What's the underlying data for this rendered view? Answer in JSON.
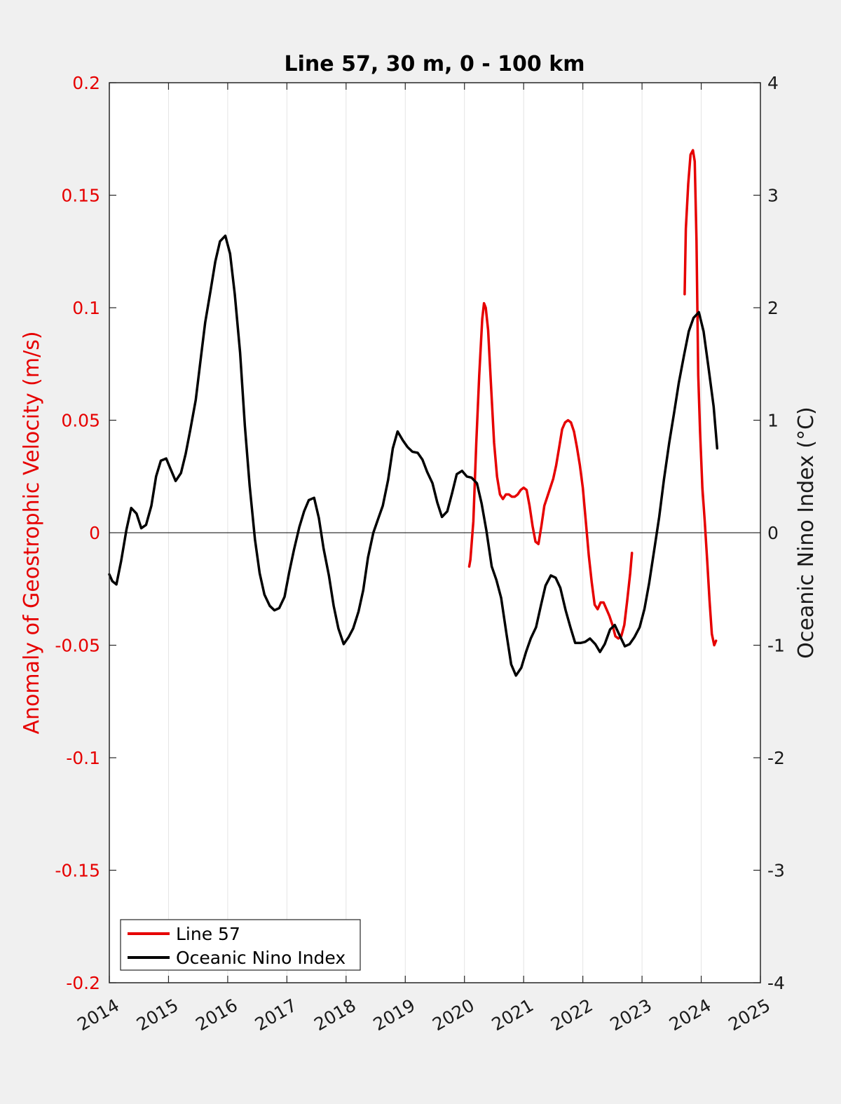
{
  "chart_data": {
    "type": "line",
    "title": "Line 57, 30 m, 0 - 100 km",
    "xlabel": "",
    "ylabel_left": "Anomaly of Geostrophic Velocity (m/s)",
    "ylabel_right": "Oceanic Nino Index (°C)",
    "xlim": [
      2014,
      2025
    ],
    "ylim_left": [
      -0.2,
      0.2
    ],
    "ylim_right": [
      -4,
      4
    ],
    "x_ticks": [
      2014,
      2015,
      2016,
      2017,
      2018,
      2019,
      2020,
      2021,
      2022,
      2023,
      2024,
      2025
    ],
    "x_tick_labels": [
      "2014",
      "2015",
      "2016",
      "2017",
      "2018",
      "2019",
      "2020",
      "2021",
      "2022",
      "2023",
      "2024",
      "2025"
    ],
    "y_left_ticks": [
      -0.2,
      -0.15,
      -0.1,
      -0.05,
      0,
      0.05,
      0.1,
      0.15,
      0.2
    ],
    "y_left_tick_labels": [
      "-0.2",
      "-0.15",
      "-0.1",
      "-0.05",
      "0",
      "0.05",
      "0.1",
      "0.15",
      "0.2"
    ],
    "y_right_ticks": [
      -4,
      -3,
      -2,
      -1,
      0,
      1,
      2,
      3,
      4
    ],
    "y_right_tick_labels": [
      "-4",
      "-3",
      "-2",
      "-1",
      "0",
      "1",
      "2",
      "3",
      "4"
    ],
    "grid": "vertical",
    "zero_line": true,
    "legend_position": "bottom-left",
    "series": [
      {
        "name": "Line 57",
        "axis": "left",
        "color": "#e60000",
        "segments": [
          [
            [
              2020.08,
              -0.015
            ],
            [
              2020.1,
              -0.012
            ],
            [
              2020.15,
              0.005
            ],
            [
              2020.2,
              0.04
            ],
            [
              2020.25,
              0.07
            ],
            [
              2020.3,
              0.095
            ],
            [
              2020.33,
              0.102
            ],
            [
              2020.36,
              0.1
            ],
            [
              2020.4,
              0.09
            ],
            [
              2020.45,
              0.065
            ],
            [
              2020.5,
              0.04
            ],
            [
              2020.55,
              0.025
            ],
            [
              2020.6,
              0.017
            ],
            [
              2020.65,
              0.015
            ],
            [
              2020.7,
              0.017
            ],
            [
              2020.75,
              0.017
            ],
            [
              2020.8,
              0.016
            ],
            [
              2020.85,
              0.016
            ],
            [
              2020.9,
              0.017
            ],
            [
              2020.95,
              0.019
            ],
            [
              2021.0,
              0.02
            ],
            [
              2021.05,
              0.019
            ],
            [
              2021.1,
              0.012
            ],
            [
              2021.15,
              0.003
            ],
            [
              2021.2,
              -0.004
            ],
            [
              2021.25,
              -0.005
            ],
            [
              2021.3,
              0.003
            ],
            [
              2021.35,
              0.012
            ],
            [
              2021.4,
              0.016
            ],
            [
              2021.45,
              0.02
            ],
            [
              2021.5,
              0.024
            ],
            [
              2021.55,
              0.03
            ],
            [
              2021.6,
              0.038
            ],
            [
              2021.65,
              0.046
            ],
            [
              2021.7,
              0.049
            ],
            [
              2021.75,
              0.05
            ],
            [
              2021.8,
              0.049
            ],
            [
              2021.85,
              0.045
            ],
            [
              2021.9,
              0.038
            ],
            [
              2021.95,
              0.03
            ],
            [
              2022.0,
              0.02
            ],
            [
              2022.05,
              0.005
            ],
            [
              2022.1,
              -0.01
            ],
            [
              2022.15,
              -0.022
            ],
            [
              2022.2,
              -0.032
            ],
            [
              2022.25,
              -0.034
            ],
            [
              2022.3,
              -0.031
            ],
            [
              2022.35,
              -0.031
            ],
            [
              2022.4,
              -0.034
            ],
            [
              2022.45,
              -0.037
            ],
            [
              2022.5,
              -0.041
            ],
            [
              2022.55,
              -0.046
            ],
            [
              2022.6,
              -0.047
            ],
            [
              2022.65,
              -0.046
            ],
            [
              2022.7,
              -0.041
            ],
            [
              2022.75,
              -0.03
            ],
            [
              2022.8,
              -0.018
            ],
            [
              2022.83,
              -0.009
            ]
          ],
          [
            [
              2023.72,
              0.106
            ],
            [
              2023.74,
              0.135
            ],
            [
              2023.78,
              0.155
            ],
            [
              2023.82,
              0.168
            ],
            [
              2023.86,
              0.17
            ],
            [
              2023.89,
              0.165
            ],
            [
              2023.92,
              0.13
            ],
            [
              2023.95,
              0.07
            ],
            [
              2023.98,
              0.045
            ],
            [
              2024.02,
              0.02
            ],
            [
              2024.06,
              0.005
            ],
            [
              2024.1,
              -0.012
            ],
            [
              2024.14,
              -0.03
            ],
            [
              2024.18,
              -0.045
            ],
            [
              2024.22,
              -0.05
            ],
            [
              2024.25,
              -0.048
            ]
          ]
        ]
      },
      {
        "name": "Oceanic Nino Index",
        "axis": "right",
        "color": "#000000",
        "points": [
          [
            2014.0,
            -0.37
          ],
          [
            2014.05,
            -0.43
          ],
          [
            2014.12,
            -0.46
          ],
          [
            2014.2,
            -0.25
          ],
          [
            2014.29,
            0.03
          ],
          [
            2014.37,
            0.22
          ],
          [
            2014.46,
            0.17
          ],
          [
            2014.54,
            0.04
          ],
          [
            2014.62,
            0.07
          ],
          [
            2014.71,
            0.24
          ],
          [
            2014.79,
            0.5
          ],
          [
            2014.87,
            0.64
          ],
          [
            2014.96,
            0.66
          ],
          [
            2015.04,
            0.56
          ],
          [
            2015.12,
            0.46
          ],
          [
            2015.21,
            0.53
          ],
          [
            2015.29,
            0.7
          ],
          [
            2015.37,
            0.92
          ],
          [
            2015.46,
            1.18
          ],
          [
            2015.54,
            1.53
          ],
          [
            2015.62,
            1.87
          ],
          [
            2015.71,
            2.15
          ],
          [
            2015.79,
            2.41
          ],
          [
            2015.87,
            2.59
          ],
          [
            2015.96,
            2.64
          ],
          [
            2016.04,
            2.48
          ],
          [
            2016.12,
            2.12
          ],
          [
            2016.21,
            1.6
          ],
          [
            2016.29,
            0.95
          ],
          [
            2016.37,
            0.42
          ],
          [
            2016.46,
            -0.06
          ],
          [
            2016.54,
            -0.36
          ],
          [
            2016.62,
            -0.55
          ],
          [
            2016.71,
            -0.65
          ],
          [
            2016.79,
            -0.69
          ],
          [
            2016.87,
            -0.67
          ],
          [
            2016.96,
            -0.57
          ],
          [
            2017.04,
            -0.35
          ],
          [
            2017.12,
            -0.15
          ],
          [
            2017.21,
            0.05
          ],
          [
            2017.29,
            0.19
          ],
          [
            2017.37,
            0.29
          ],
          [
            2017.46,
            0.31
          ],
          [
            2017.54,
            0.13
          ],
          [
            2017.62,
            -0.14
          ],
          [
            2017.71,
            -0.38
          ],
          [
            2017.79,
            -0.65
          ],
          [
            2017.87,
            -0.85
          ],
          [
            2017.96,
            -0.99
          ],
          [
            2018.04,
            -0.93
          ],
          [
            2018.12,
            -0.85
          ],
          [
            2018.21,
            -0.7
          ],
          [
            2018.29,
            -0.51
          ],
          [
            2018.37,
            -0.22
          ],
          [
            2018.46,
            0.0
          ],
          [
            2018.54,
            0.12
          ],
          [
            2018.62,
            0.24
          ],
          [
            2018.71,
            0.47
          ],
          [
            2018.79,
            0.75
          ],
          [
            2018.87,
            0.9
          ],
          [
            2018.96,
            0.82
          ],
          [
            2019.04,
            0.76
          ],
          [
            2019.12,
            0.72
          ],
          [
            2019.21,
            0.71
          ],
          [
            2019.29,
            0.65
          ],
          [
            2019.37,
            0.54
          ],
          [
            2019.46,
            0.44
          ],
          [
            2019.54,
            0.27
          ],
          [
            2019.62,
            0.14
          ],
          [
            2019.71,
            0.19
          ],
          [
            2019.79,
            0.35
          ],
          [
            2019.87,
            0.52
          ],
          [
            2019.96,
            0.55
          ],
          [
            2020.04,
            0.5
          ],
          [
            2020.12,
            0.49
          ],
          [
            2020.21,
            0.44
          ],
          [
            2020.29,
            0.26
          ],
          [
            2020.37,
            0.02
          ],
          [
            2020.46,
            -0.3
          ],
          [
            2020.54,
            -0.42
          ],
          [
            2020.62,
            -0.58
          ],
          [
            2020.71,
            -0.9
          ],
          [
            2020.79,
            -1.17
          ],
          [
            2020.87,
            -1.27
          ],
          [
            2020.96,
            -1.2
          ],
          [
            2021.04,
            -1.06
          ],
          [
            2021.12,
            -0.94
          ],
          [
            2021.21,
            -0.84
          ],
          [
            2021.29,
            -0.65
          ],
          [
            2021.37,
            -0.47
          ],
          [
            2021.46,
            -0.38
          ],
          [
            2021.54,
            -0.4
          ],
          [
            2021.62,
            -0.49
          ],
          [
            2021.71,
            -0.69
          ],
          [
            2021.79,
            -0.84
          ],
          [
            2021.87,
            -0.98
          ],
          [
            2021.96,
            -0.98
          ],
          [
            2022.04,
            -0.97
          ],
          [
            2022.12,
            -0.94
          ],
          [
            2022.21,
            -0.99
          ],
          [
            2022.29,
            -1.06
          ],
          [
            2022.37,
            -0.99
          ],
          [
            2022.46,
            -0.86
          ],
          [
            2022.54,
            -0.82
          ],
          [
            2022.62,
            -0.91
          ],
          [
            2022.71,
            -1.01
          ],
          [
            2022.79,
            -0.99
          ],
          [
            2022.87,
            -0.93
          ],
          [
            2022.96,
            -0.84
          ],
          [
            2023.04,
            -0.68
          ],
          [
            2023.12,
            -0.45
          ],
          [
            2023.21,
            -0.14
          ],
          [
            2023.29,
            0.14
          ],
          [
            2023.37,
            0.47
          ],
          [
            2023.46,
            0.8
          ],
          [
            2023.54,
            1.06
          ],
          [
            2023.62,
            1.33
          ],
          [
            2023.71,
            1.58
          ],
          [
            2023.79,
            1.79
          ],
          [
            2023.87,
            1.91
          ],
          [
            2023.96,
            1.96
          ],
          [
            2024.04,
            1.79
          ],
          [
            2024.12,
            1.48
          ],
          [
            2024.21,
            1.12
          ],
          [
            2024.27,
            0.75
          ]
        ]
      }
    ]
  }
}
